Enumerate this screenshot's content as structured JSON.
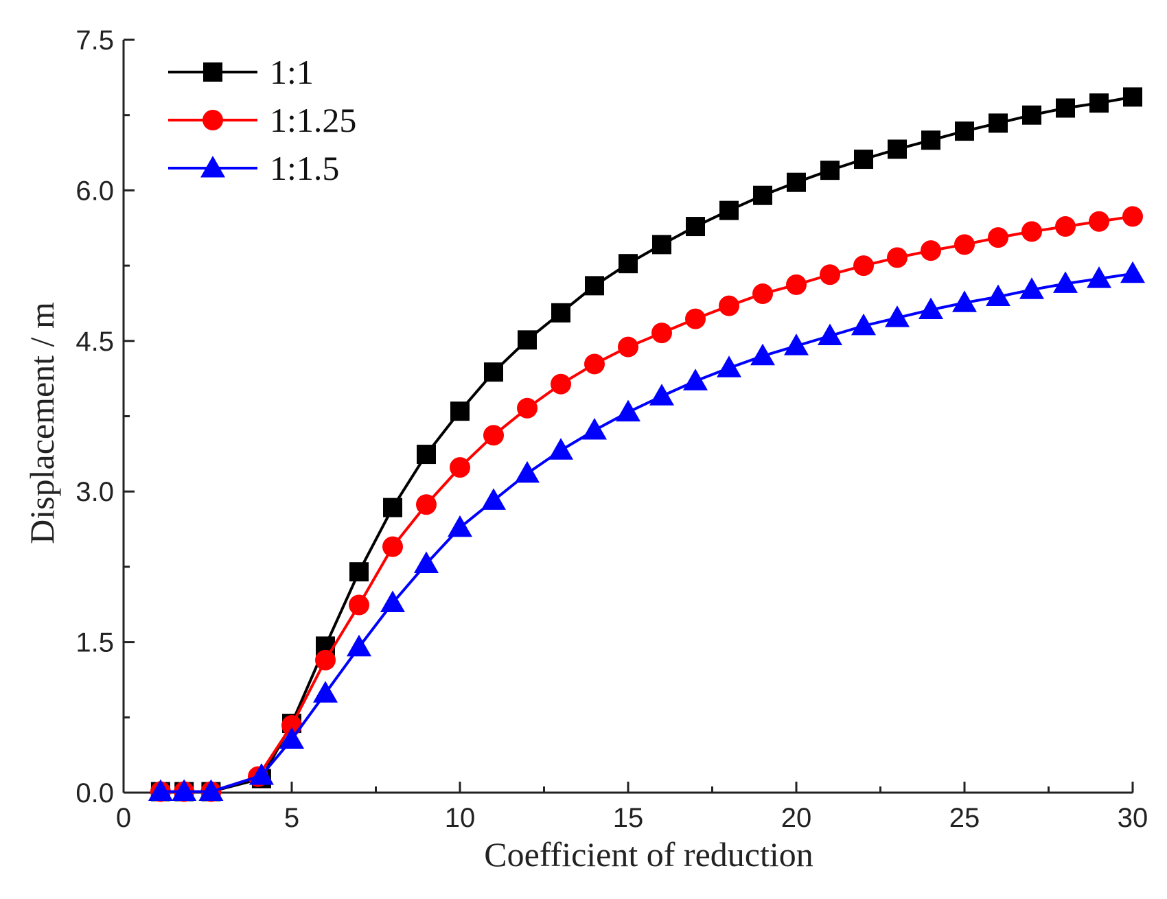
{
  "chart_data": {
    "type": "line",
    "title": "",
    "xlabel": "Coefficient of reduction",
    "ylabel": "Displacement / m",
    "xlim": [
      0,
      30
    ],
    "ylim": [
      0,
      7.5
    ],
    "x_ticks": [
      0,
      5,
      10,
      15,
      20,
      25,
      30
    ],
    "x_tick_labels": [
      "0",
      "5",
      "10",
      "15",
      "20",
      "25",
      "30"
    ],
    "y_ticks": [
      0,
      1.5,
      3.0,
      4.5,
      6.0,
      7.5
    ],
    "y_tick_labels": [
      "0.0",
      "1.5",
      "3.0",
      "4.5",
      "6.0",
      "7.5"
    ],
    "legend_position": "top-left",
    "grid": false,
    "series": [
      {
        "name": "1:1",
        "color": "#000000",
        "marker": "square",
        "x": [
          1.1,
          1.8,
          2.6,
          4.1,
          5,
          6,
          7,
          8,
          9,
          10,
          11,
          12,
          13,
          14,
          15,
          16,
          17,
          18,
          19,
          20,
          21,
          22,
          23,
          24,
          25,
          26,
          27,
          28,
          29,
          30
        ],
        "values": [
          0.01,
          0.01,
          0.01,
          0.14,
          0.69,
          1.46,
          2.2,
          2.84,
          3.37,
          3.8,
          4.19,
          4.51,
          4.78,
          5.05,
          5.27,
          5.46,
          5.64,
          5.8,
          5.95,
          6.08,
          6.2,
          6.31,
          6.41,
          6.5,
          6.59,
          6.67,
          6.75,
          6.82,
          6.87,
          6.93
        ]
      },
      {
        "name": "1:1.25",
        "color": "#ff0000",
        "marker": "circle",
        "x": [
          1.1,
          1.8,
          2.6,
          4.0,
          5,
          6,
          7,
          8,
          9,
          10,
          11,
          12,
          13,
          14,
          15,
          16,
          17,
          18,
          19,
          20,
          21,
          22,
          23,
          24,
          25,
          26,
          27,
          28,
          29,
          30
        ],
        "values": [
          0.01,
          0.01,
          0.01,
          0.16,
          0.67,
          1.32,
          1.87,
          2.45,
          2.87,
          3.24,
          3.56,
          3.83,
          4.07,
          4.27,
          4.44,
          4.58,
          4.72,
          4.85,
          4.97,
          5.06,
          5.16,
          5.25,
          5.33,
          5.4,
          5.46,
          5.53,
          5.59,
          5.64,
          5.69,
          5.74
        ]
      },
      {
        "name": "1:1.5",
        "color": "#0000ff",
        "marker": "triangle",
        "x": [
          1.1,
          1.8,
          2.6,
          4.1,
          5,
          6,
          7,
          8,
          9,
          10,
          11,
          12,
          13,
          14,
          15,
          16,
          17,
          18,
          19,
          20,
          21,
          22,
          23,
          24,
          25,
          26,
          27,
          28,
          29,
          30
        ],
        "values": [
          0.01,
          0.01,
          0.01,
          0.17,
          0.53,
          0.99,
          1.45,
          1.89,
          2.28,
          2.64,
          2.91,
          3.18,
          3.41,
          3.61,
          3.79,
          3.95,
          4.1,
          4.23,
          4.35,
          4.45,
          4.55,
          4.65,
          4.73,
          4.81,
          4.88,
          4.94,
          5.01,
          5.07,
          5.12,
          5.17
        ]
      }
    ]
  }
}
